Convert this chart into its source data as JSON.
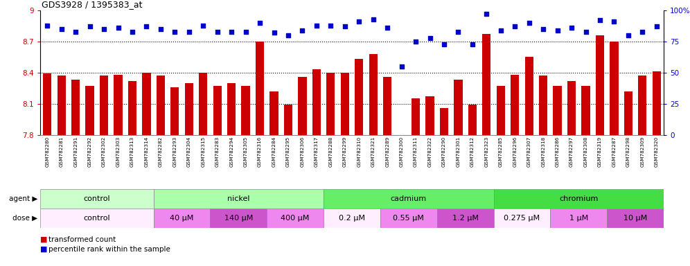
{
  "title": "GDS3928 / 1395383_at",
  "samples": [
    "GSM782280",
    "GSM782281",
    "GSM782291",
    "GSM782292",
    "GSM782302",
    "GSM782303",
    "GSM782313",
    "GSM782314",
    "GSM782282",
    "GSM782293",
    "GSM782304",
    "GSM782315",
    "GSM782283",
    "GSM782294",
    "GSM782305",
    "GSM782316",
    "GSM782284",
    "GSM782295",
    "GSM782306",
    "GSM782317",
    "GSM782288",
    "GSM782299",
    "GSM782310",
    "GSM782321",
    "GSM782289",
    "GSM782300",
    "GSM782311",
    "GSM782322",
    "GSM782290",
    "GSM782301",
    "GSM782312",
    "GSM782323",
    "GSM782285",
    "GSM782296",
    "GSM782307",
    "GSM782318",
    "GSM782286",
    "GSM782297",
    "GSM782308",
    "GSM782319",
    "GSM782287",
    "GSM782298",
    "GSM782309",
    "GSM782320"
  ],
  "bar_values": [
    8.39,
    8.37,
    8.33,
    8.27,
    8.37,
    8.38,
    8.32,
    8.4,
    8.37,
    8.26,
    8.3,
    8.4,
    8.27,
    8.3,
    8.27,
    8.7,
    8.22,
    8.09,
    8.36,
    8.43,
    8.4,
    8.4,
    8.53,
    8.58,
    8.36,
    7.8,
    8.15,
    8.17,
    8.06,
    8.33,
    8.09,
    8.77,
    8.27,
    8.38,
    8.55,
    8.37,
    8.27,
    8.32,
    8.27,
    8.76,
    8.7,
    8.22,
    8.37,
    8.41
  ],
  "percentile_values": [
    88,
    85,
    83,
    87,
    85,
    86,
    83,
    87,
    85,
    83,
    83,
    88,
    83,
    83,
    83,
    90,
    82,
    80,
    84,
    88,
    88,
    87,
    91,
    93,
    86,
    55,
    75,
    78,
    73,
    83,
    73,
    97,
    84,
    87,
    90,
    85,
    84,
    86,
    83,
    92,
    91,
    80,
    83,
    87
  ],
  "ylim_left": [
    7.8,
    9.0
  ],
  "ylim_right": [
    0,
    100
  ],
  "yticks_left": [
    7.8,
    8.1,
    8.4,
    8.7,
    9.0
  ],
  "yticks_right": [
    0,
    25,
    50,
    75,
    100
  ],
  "ytick_labels_left": [
    "7.8",
    "8.1",
    "8.4",
    "8.7",
    "9"
  ],
  "ytick_labels_right": [
    "0",
    "25",
    "50",
    "75",
    "100%"
  ],
  "bar_color": "#cc0000",
  "dot_color": "#0000cc",
  "agent_groups": [
    {
      "label": "control",
      "start": 0,
      "end": 7,
      "color": "#ccffcc"
    },
    {
      "label": "nickel",
      "start": 8,
      "end": 19,
      "color": "#aaffaa"
    },
    {
      "label": "cadmium",
      "start": 20,
      "end": 31,
      "color": "#66ee66"
    },
    {
      "label": "chromium",
      "start": 32,
      "end": 43,
      "color": "#44dd44"
    }
  ],
  "dose_groups": [
    {
      "label": "control",
      "start": 0,
      "end": 7,
      "color": "#ffeeff"
    },
    {
      "label": "40 μM",
      "start": 8,
      "end": 11,
      "color": "#ee88ee"
    },
    {
      "label": "140 μM",
      "start": 12,
      "end": 15,
      "color": "#cc55cc"
    },
    {
      "label": "400 μM",
      "start": 16,
      "end": 19,
      "color": "#ee88ee"
    },
    {
      "label": "0.2 μM",
      "start": 20,
      "end": 23,
      "color": "#ffeeff"
    },
    {
      "label": "0.55 μM",
      "start": 24,
      "end": 27,
      "color": "#ee88ee"
    },
    {
      "label": "1.2 μM",
      "start": 28,
      "end": 31,
      "color": "#cc55cc"
    },
    {
      "label": "0.275 μM",
      "start": 32,
      "end": 35,
      "color": "#ffeeff"
    },
    {
      "label": "1 μM",
      "start": 36,
      "end": 39,
      "color": "#ee88ee"
    },
    {
      "label": "10 μM",
      "start": 40,
      "end": 43,
      "color": "#cc55cc"
    }
  ],
  "xtick_bg_color": "#e8e8e8",
  "background_color": "#ffffff"
}
